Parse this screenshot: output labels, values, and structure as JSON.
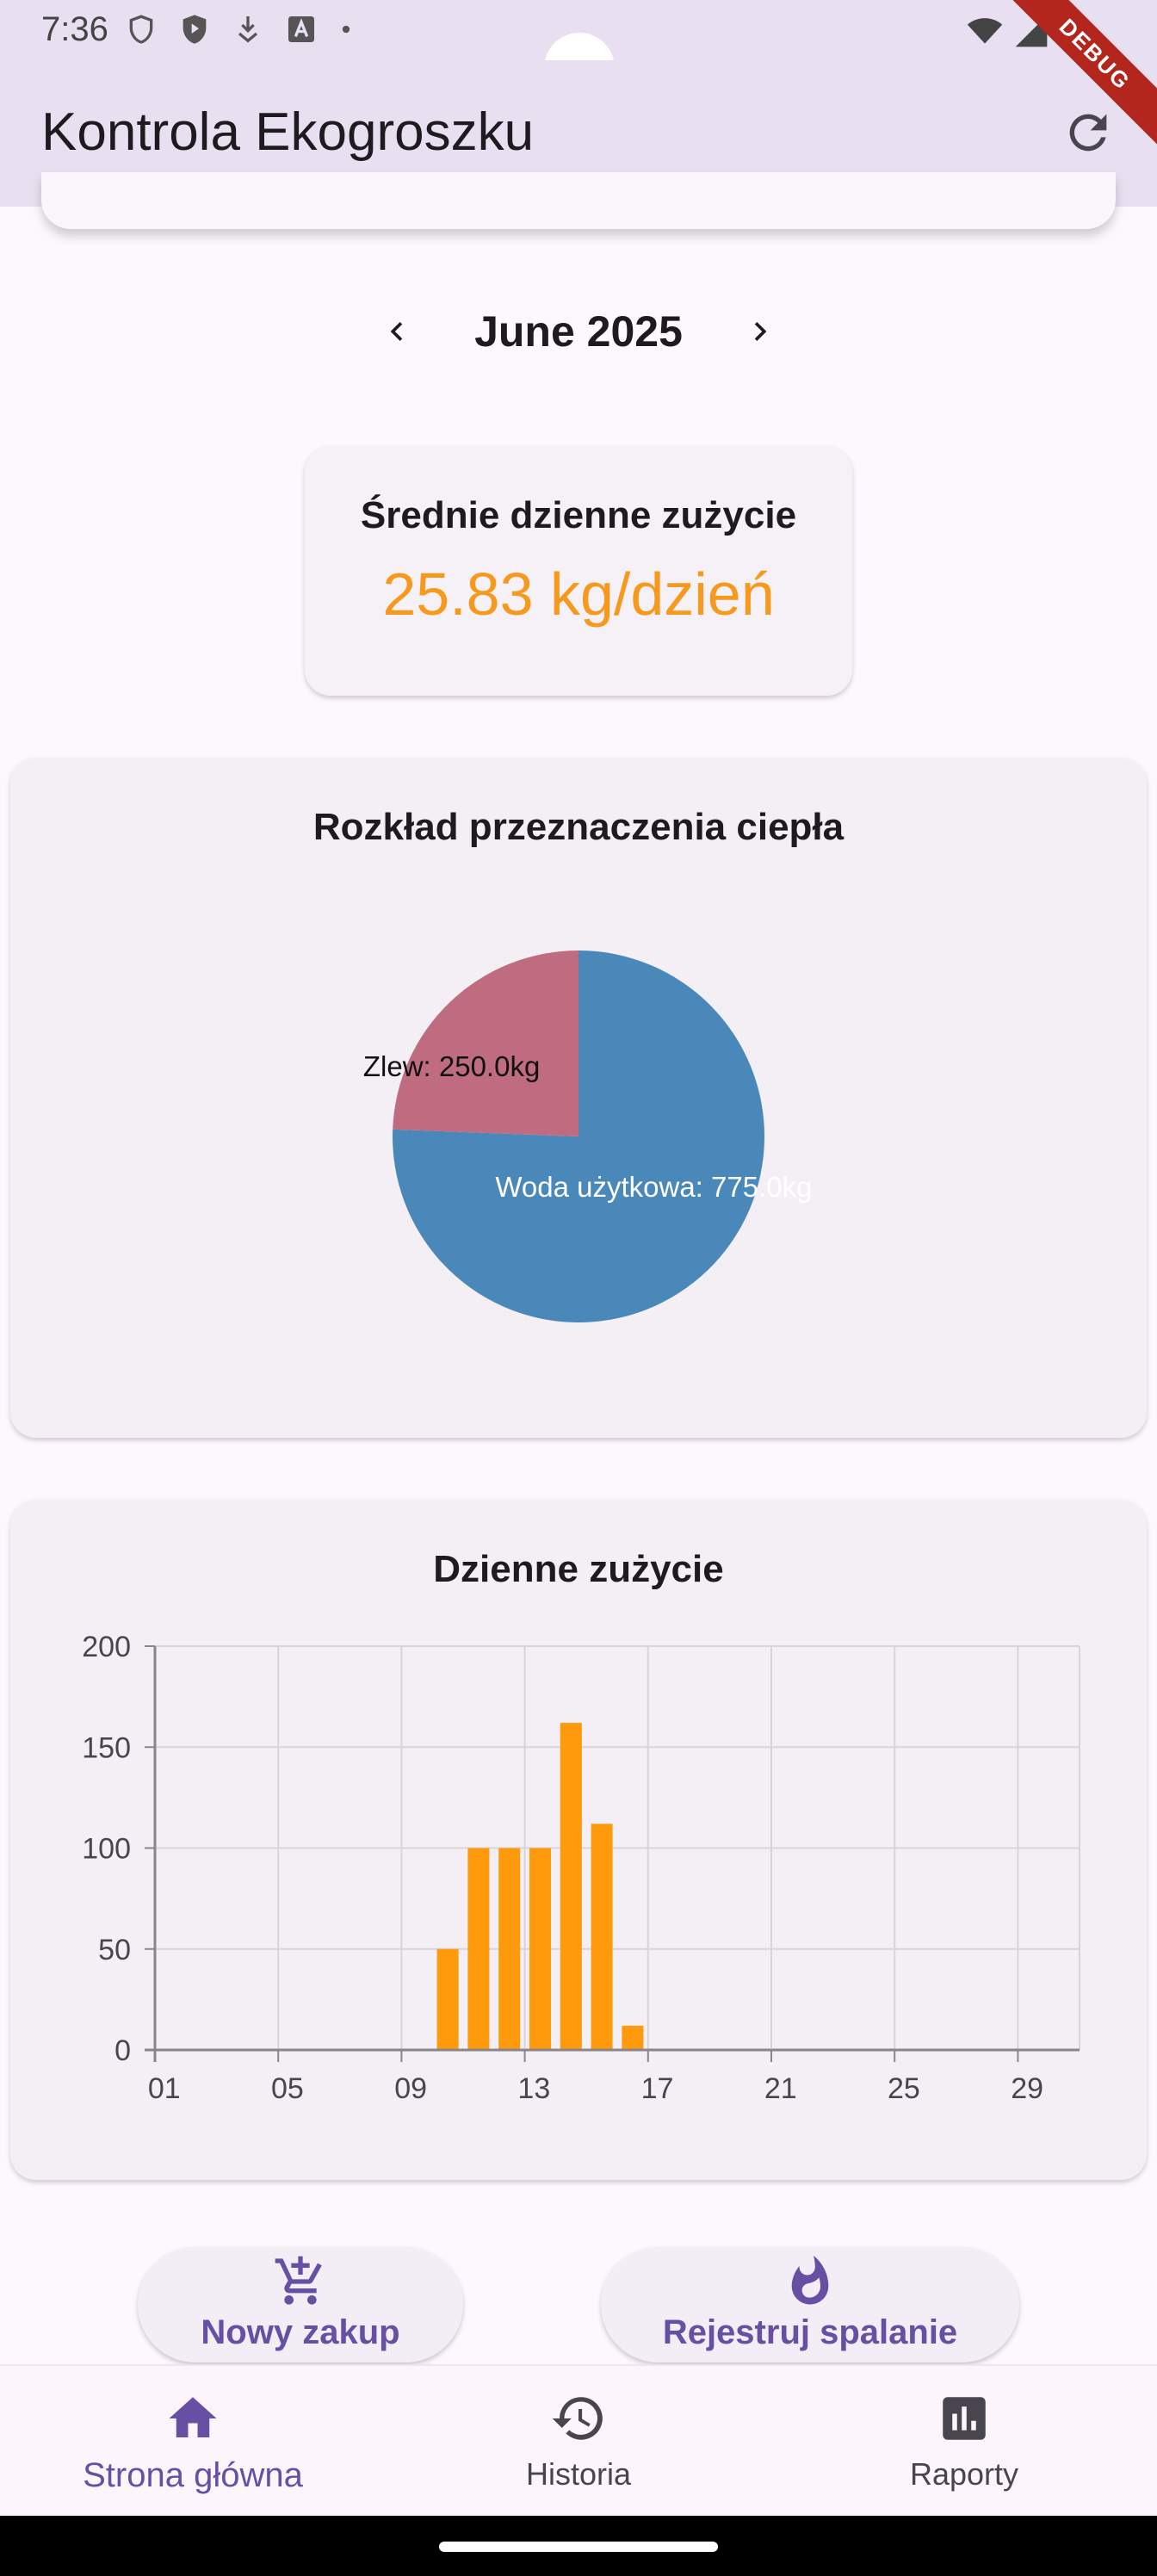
{
  "status_bar": {
    "time": "7:36",
    "left_icons": [
      "shield-outline-icon",
      "play-shield-icon",
      "download-app-icon",
      "font-a-icon",
      "dot-icon"
    ],
    "right_icons": [
      "wifi-icon",
      "signal-icon",
      "battery-icon"
    ],
    "debug_banner": "DEBUG"
  },
  "app_bar": {
    "title": "Kontrola Ekogroszku",
    "refresh_icon": "refresh-icon"
  },
  "month_nav": {
    "label": "June 2025",
    "prev_icon": "chevron-left-icon",
    "next_icon": "chevron-right-icon"
  },
  "avg_card": {
    "title": "Średnie dzienne zużycie",
    "value": "25.83 kg/dzień",
    "value_color": "#f7991d"
  },
  "pie_card": {
    "title": "Rozkład przeznaczenia ciepła"
  },
  "bar_card": {
    "title": "Dzienne zużycie"
  },
  "chart_data": [
    {
      "type": "pie",
      "title": "Rozkład przeznaczenia ciepła",
      "slices": [
        {
          "label": "Woda użytkowa: 775.0kg",
          "value": 775.0,
          "color": "#4a88ba"
        },
        {
          "label": "Zlew: 250.0kg",
          "value": 250.0,
          "color": "#c06c80"
        }
      ]
    },
    {
      "type": "bar",
      "title": "Dzienne zużycie",
      "categories": [
        "01",
        "02",
        "03",
        "04",
        "05",
        "06",
        "07",
        "08",
        "09",
        "10",
        "11",
        "12",
        "13",
        "14",
        "15",
        "16",
        "17",
        "18",
        "19",
        "20",
        "21",
        "22",
        "23",
        "24",
        "25",
        "26",
        "27",
        "28",
        "29",
        "30"
      ],
      "values": [
        0,
        0,
        0,
        0,
        0,
        0,
        0,
        0,
        0,
        50,
        100,
        100,
        100,
        162,
        112,
        12,
        0,
        0,
        0,
        0,
        0,
        0,
        0,
        0,
        0,
        0,
        0,
        0,
        0,
        0
      ],
      "x_tick_labels": [
        "01",
        "05",
        "09",
        "13",
        "17",
        "21",
        "25",
        "29"
      ],
      "y_ticks": [
        0,
        50,
        100,
        150,
        200
      ],
      "ylim": [
        0,
        200
      ],
      "grid": true,
      "bar_color": "#ff9a0d"
    }
  ],
  "actions": {
    "purchase_label": "Nowy zakup",
    "purchase_icon": "cart-add-icon",
    "burn_label": "Rejestruj spalanie",
    "burn_icon": "flame-icon"
  },
  "bottom_nav": {
    "items": [
      {
        "label": "Strona główna",
        "icon": "home-icon",
        "active": true
      },
      {
        "label": "Historia",
        "icon": "history-icon",
        "active": false
      },
      {
        "label": "Raporty",
        "icon": "bar-chart-icon",
        "active": false
      }
    ]
  },
  "colors": {
    "accent": "#6750a4",
    "app_bar": "#e8e0f0",
    "background": "#fdf7fe"
  }
}
